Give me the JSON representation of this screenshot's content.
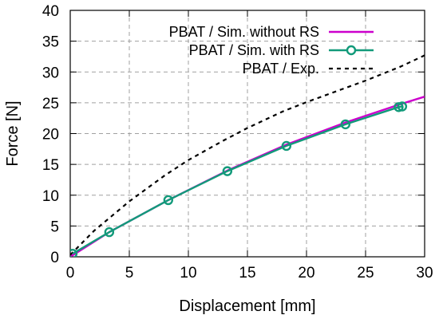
{
  "chart_data": {
    "type": "line",
    "xlabel": "Displacement [mm]",
    "ylabel": "Force [N]",
    "xlim": [
      0,
      30
    ],
    "ylim": [
      0,
      40
    ],
    "x_ticks": [
      "0",
      "5",
      "10",
      "15",
      "20",
      "25",
      "30"
    ],
    "y_ticks": [
      "0",
      "5",
      "10",
      "15",
      "20",
      "25",
      "30",
      "35",
      "40"
    ],
    "x_tick_values": [
      0,
      5,
      10,
      15,
      20,
      25,
      30
    ],
    "y_tick_values": [
      0,
      5,
      10,
      15,
      20,
      25,
      30,
      35,
      40
    ],
    "grid": true,
    "legend_position": "top-right",
    "series": [
      {
        "name": "PBAT / Sim. without RS",
        "color": "#cc00cc",
        "style": "solid",
        "markers": false,
        "points": [
          [
            0,
            0
          ],
          [
            3.3,
            4.0
          ],
          [
            8.3,
            9.2
          ],
          [
            13.3,
            14.0
          ],
          [
            18.3,
            18.2
          ],
          [
            23.3,
            21.8
          ],
          [
            28.0,
            24.8
          ],
          [
            30.0,
            26.0
          ]
        ]
      },
      {
        "name": "PBAT / Sim. with RS",
        "color": "#129a7a",
        "style": "solid",
        "markers": true,
        "points": [
          [
            0.2,
            0.5
          ],
          [
            3.3,
            4.0
          ],
          [
            8.3,
            9.2
          ],
          [
            13.3,
            13.9
          ],
          [
            18.3,
            18.0
          ],
          [
            23.3,
            21.5
          ],
          [
            27.8,
            24.3
          ],
          [
            28.1,
            24.4
          ]
        ]
      },
      {
        "name": "PBAT / Exp.",
        "color": "#000000",
        "style": "dashed",
        "markers": false,
        "points": [
          [
            0,
            0.3
          ],
          [
            2,
            4.2
          ],
          [
            5,
            9.0
          ],
          [
            8,
            13.2
          ],
          [
            10,
            15.7
          ],
          [
            13,
            18.9
          ],
          [
            15,
            20.9
          ],
          [
            18,
            23.6
          ],
          [
            20,
            25.1
          ],
          [
            23,
            27.2
          ],
          [
            25,
            28.6
          ],
          [
            28,
            30.9
          ],
          [
            30,
            32.7
          ]
        ]
      }
    ]
  }
}
